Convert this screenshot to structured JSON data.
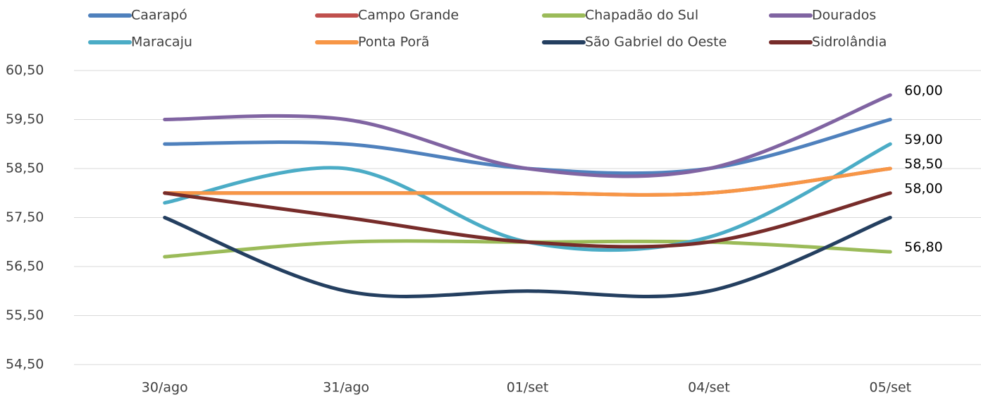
{
  "chart_data": {
    "type": "line",
    "categories": [
      "30/ago",
      "31/ago",
      "01/set",
      "04/set",
      "05/set"
    ],
    "ylim": [
      54.5,
      60.5
    ],
    "yticks": [
      {
        "value": 54.5,
        "label": "54,50"
      },
      {
        "value": 55.5,
        "label": "55,50"
      },
      {
        "value": 56.5,
        "label": "56,50"
      },
      {
        "value": 57.5,
        "label": "57,50"
      },
      {
        "value": 58.5,
        "label": "58,50"
      },
      {
        "value": 59.5,
        "label": "59,50"
      },
      {
        "value": 60.5,
        "label": "60,50"
      }
    ],
    "grid": true,
    "smooth": true,
    "legend": "top",
    "series": [
      {
        "name": "Caarapó",
        "color": "#4f81bd",
        "values": [
          59.0,
          59.0,
          58.5,
          58.5,
          59.5
        ]
      },
      {
        "name": "Campo Grande",
        "color": "#c0504d",
        "values": [
          58.0,
          58.0,
          58.0,
          58.0,
          58.5
        ]
      },
      {
        "name": "Chapadão do Sul",
        "color": "#9bbb59",
        "values": [
          56.7,
          57.0,
          57.0,
          57.0,
          56.8
        ],
        "value_labels": [
          null,
          null,
          null,
          null,
          "56,80"
        ]
      },
      {
        "name": "Dourados",
        "color": "#8064a2",
        "values": [
          59.5,
          59.5,
          58.5,
          58.5,
          60.0
        ],
        "value_labels": [
          null,
          null,
          null,
          null,
          "60,00"
        ]
      },
      {
        "name": "Maracaju",
        "color": "#4bacc6",
        "values": [
          57.8,
          58.5,
          57.0,
          57.1,
          59.0
        ],
        "value_labels": [
          null,
          null,
          null,
          null,
          "59,00"
        ]
      },
      {
        "name": "Ponta Porã",
        "color": "#f79646",
        "values": [
          58.0,
          58.0,
          58.0,
          58.0,
          58.5
        ],
        "value_labels": [
          null,
          null,
          null,
          null,
          "58,50"
        ]
      },
      {
        "name": "São Gabriel do Oeste",
        "color": "#243f60",
        "values": [
          57.5,
          56.0,
          56.0,
          56.0,
          57.5
        ]
      },
      {
        "name": "Sidrolândia",
        "color": "#772c2a",
        "values": [
          58.0,
          57.5,
          57.0,
          57.0,
          58.0
        ],
        "value_labels": [
          null,
          null,
          null,
          null,
          "58,00"
        ]
      }
    ]
  }
}
